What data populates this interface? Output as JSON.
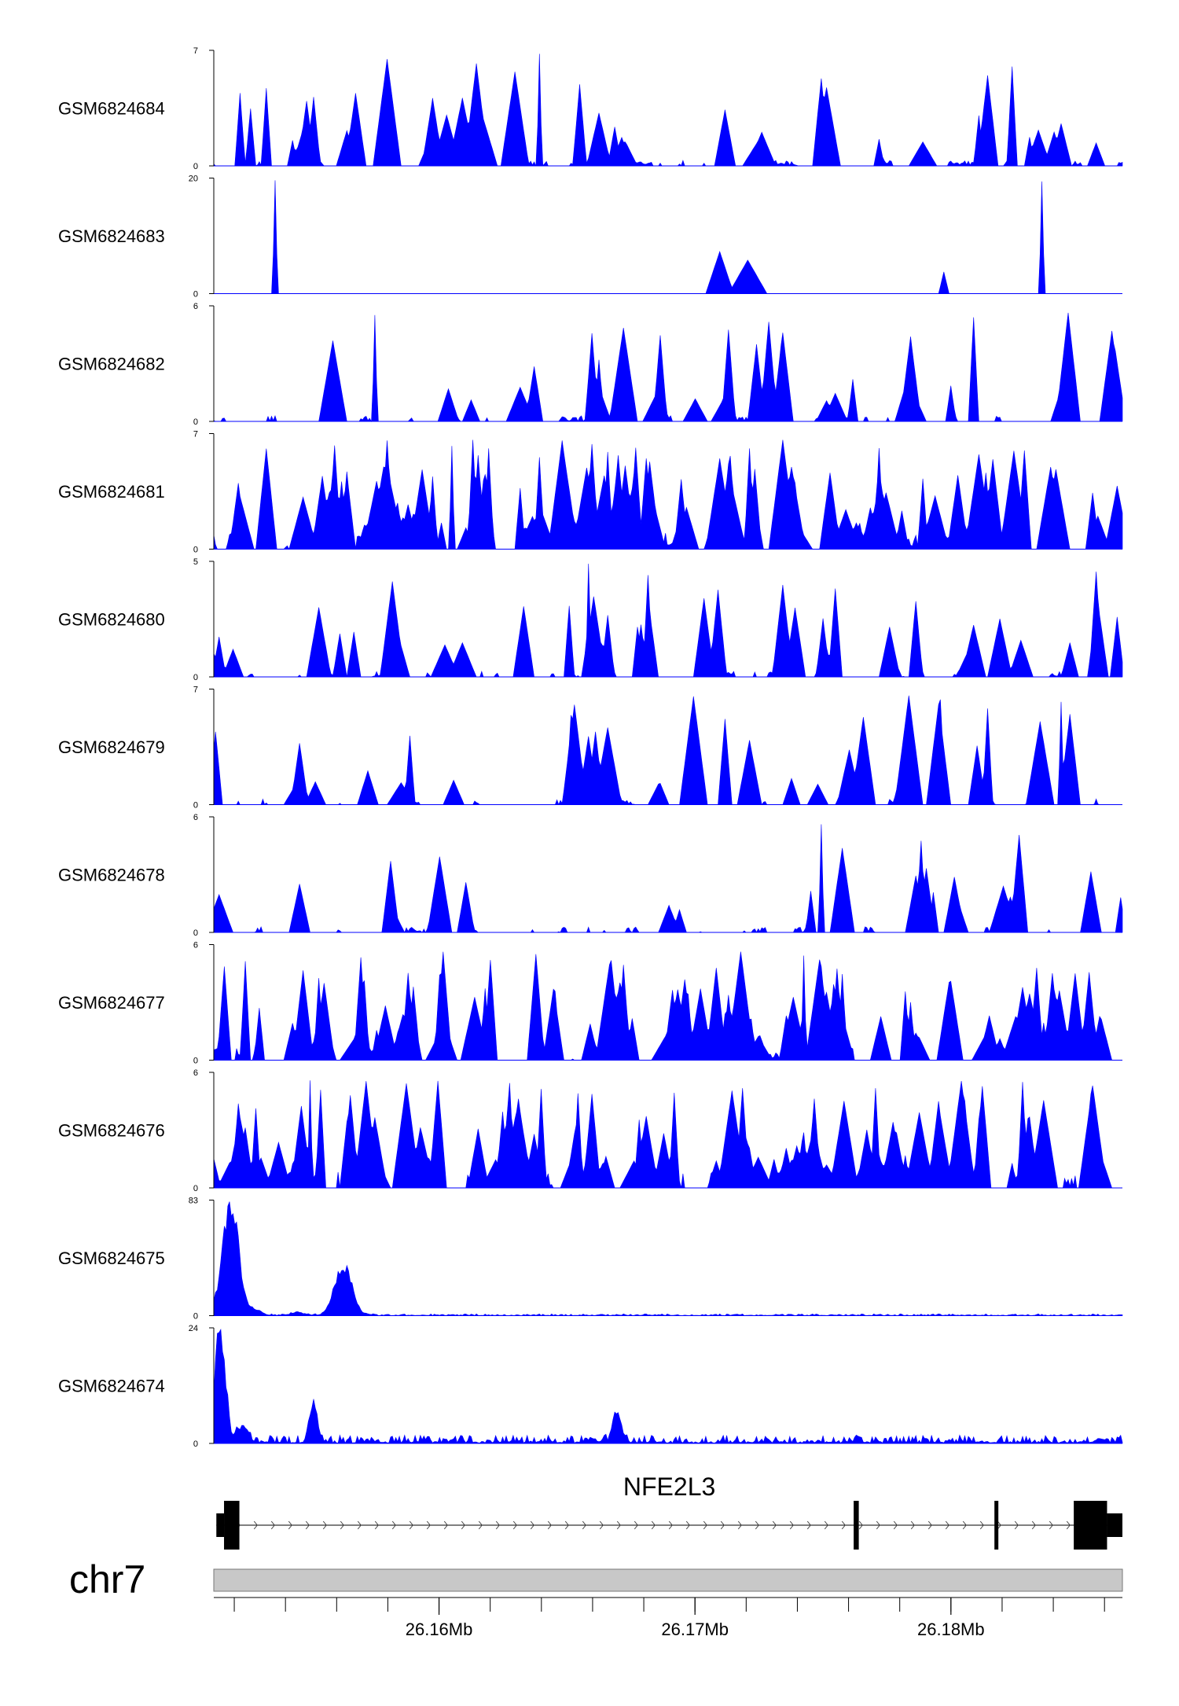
{
  "colors": {
    "signal": "#0000ff",
    "axis": "#000000",
    "ideogram_fill": "#c8c8c8",
    "ideogram_stroke": "#777777",
    "gene": "#000000"
  },
  "chart_data": {
    "type": "area",
    "genome": {
      "chromosome": "chr7",
      "region_start_bp": 26151200,
      "region_end_bp": 26186700
    },
    "tracks": [
      {
        "name": "GSM6824684",
        "ymax": 7,
        "ymin_label": "0",
        "ymax_label": "7",
        "profile": "sparse",
        "seed": 11
      },
      {
        "name": "GSM6824683",
        "ymax": 20,
        "ymin_label": "0",
        "ymax_label": "20",
        "profile": "very-sparse",
        "seed": 23
      },
      {
        "name": "GSM6824682",
        "ymax": 6,
        "ymin_label": "0",
        "ymax_label": "6",
        "profile": "sparse",
        "seed": 37
      },
      {
        "name": "GSM6824681",
        "ymax": 7,
        "ymin_label": "0",
        "ymax_label": "7",
        "profile": "dense",
        "seed": 41
      },
      {
        "name": "GSM6824680",
        "ymax": 5,
        "ymin_label": "0",
        "ymax_label": "5",
        "profile": "sparse",
        "seed": 53
      },
      {
        "name": "GSM6824679",
        "ymax": 7,
        "ymin_label": "0",
        "ymax_label": "7",
        "profile": "sparse",
        "seed": 67
      },
      {
        "name": "GSM6824678",
        "ymax": 6,
        "ymin_label": "0",
        "ymax_label": "6",
        "profile": "sparse",
        "seed": 71
      },
      {
        "name": "GSM6824677",
        "ymax": 6,
        "ymin_label": "0",
        "ymax_label": "6",
        "profile": "dense",
        "seed": 83
      },
      {
        "name": "GSM6824676",
        "ymax": 6,
        "ymin_label": "0",
        "ymax_label": "6",
        "profile": "dense",
        "seed": 97
      },
      {
        "name": "GSM6824675",
        "ymax": 83,
        "ymin_label": "0",
        "ymax_label": "83",
        "profile": "peaked",
        "seed": 101,
        "baseline": 1.2,
        "peaks": [
          {
            "pos_bp": 26151850,
            "height": 82,
            "width_bp": 650
          },
          {
            "pos_bp": 26156250,
            "height": 35,
            "width_bp": 700
          },
          {
            "pos_bp": 26152800,
            "height": 4,
            "width_bp": 500
          },
          {
            "pos_bp": 26154500,
            "height": 2,
            "width_bp": 600
          }
        ]
      },
      {
        "name": "GSM6824674",
        "ymax": 24,
        "ymin_label": "0",
        "ymax_label": "24",
        "profile": "peaked",
        "seed": 113,
        "baseline": 1.6,
        "peaks": [
          {
            "pos_bp": 26151450,
            "height": 23,
            "width_bp": 420
          },
          {
            "pos_bp": 26155100,
            "height": 8,
            "width_bp": 300
          },
          {
            "pos_bp": 26166950,
            "height": 6.5,
            "width_bp": 350
          },
          {
            "pos_bp": 26152300,
            "height": 3.5,
            "width_bp": 400
          }
        ]
      }
    ],
    "gene": {
      "name": "NFE2L3",
      "strand": "+",
      "start_bp": 26151300,
      "end_bp": 26186700,
      "utr": [
        {
          "start_bp": 26151300,
          "end_bp": 26151600
        },
        {
          "start_bp": 26186100,
          "end_bp": 26186700
        }
      ],
      "exons": [
        {
          "start_bp": 26151600,
          "end_bp": 26152200
        },
        {
          "start_bp": 26176200,
          "end_bp": 26176400
        },
        {
          "start_bp": 26181700,
          "end_bp": 26181850
        },
        {
          "start_bp": 26184800,
          "end_bp": 26186100
        }
      ]
    },
    "axis": {
      "minor_tick_every_bp": 2000,
      "labels": [
        {
          "pos_bp": 26160000,
          "label": "26.16Mb"
        },
        {
          "pos_bp": 26170000,
          "label": "26.17Mb"
        },
        {
          "pos_bp": 26180000,
          "label": "26.18Mb"
        }
      ]
    }
  }
}
